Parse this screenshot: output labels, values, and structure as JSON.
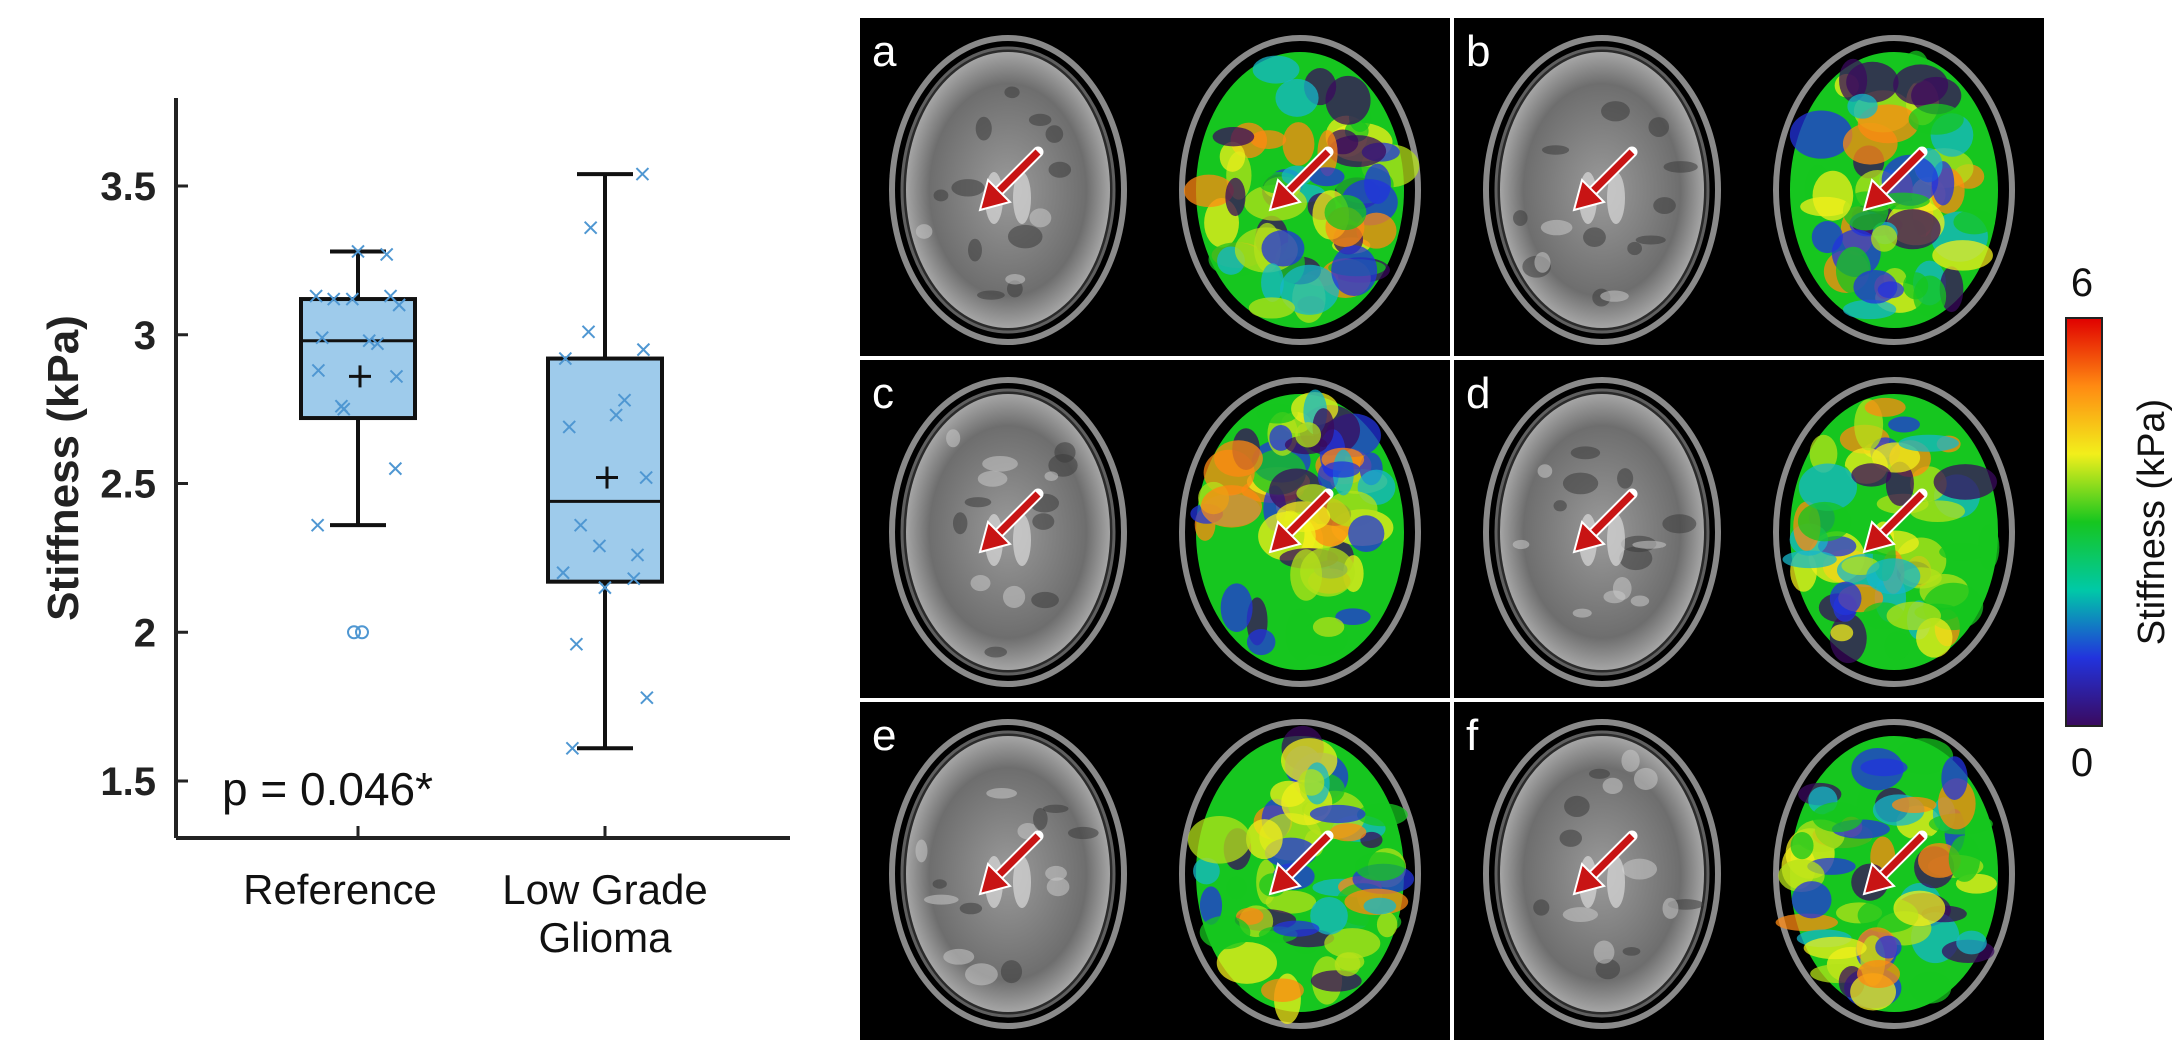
{
  "chart_data": {
    "type": "box",
    "ylabel": "Stiffness (kPa)",
    "ylim": [
      1.3,
      3.85
    ],
    "yticks": [
      "1.5",
      "2",
      "2.5",
      "3",
      "3.5"
    ],
    "categories": [
      "Reference",
      "Low Grade Glioma"
    ],
    "category_lines": [
      [
        "Reference"
      ],
      [
        "Low Grade",
        "Glioma"
      ]
    ],
    "annotation": "p = 0.046*",
    "grid": false,
    "groups": [
      {
        "name": "Reference",
        "whisker_low": 2.36,
        "q1": 2.72,
        "median": 2.98,
        "q3": 3.12,
        "whisker_high": 3.28,
        "mean": 2.86,
        "outliers": [
          2.0,
          2.0
        ],
        "points": [
          3.28,
          3.27,
          3.13,
          3.13,
          3.12,
          3.12,
          3.1,
          2.99,
          2.98,
          2.97,
          2.88,
          2.86,
          2.76,
          2.75,
          2.55,
          2.36
        ]
      },
      {
        "name": "Low Grade Glioma",
        "whisker_low": 1.61,
        "q1": 2.17,
        "median": 2.44,
        "q3": 2.92,
        "whisker_high": 3.54,
        "mean": 2.52,
        "outliers": [],
        "points": [
          3.54,
          3.36,
          3.01,
          2.95,
          2.92,
          2.78,
          2.73,
          2.69,
          2.52,
          2.36,
          2.29,
          2.26,
          2.2,
          2.18,
          2.15,
          1.96,
          1.78,
          1.61
        ]
      }
    ]
  },
  "panels": [
    {
      "label": "a"
    },
    {
      "label": "b"
    },
    {
      "label": "c"
    },
    {
      "label": "d"
    },
    {
      "label": "e"
    },
    {
      "label": "f"
    }
  ],
  "colorbar": {
    "label": "Stiffness (kPa)",
    "max_label": "6",
    "min_label": "0",
    "colors": [
      "#3a0a5e",
      "#2233dd",
      "#00c9a7",
      "#16c61f",
      "#f2ef1b",
      "#ff8a12",
      "#e00000"
    ]
  },
  "colors": {
    "box_fill": "#9ecbeb",
    "marker": "#4f97d2",
    "arrow": "#c81414",
    "axis": "#222222"
  }
}
